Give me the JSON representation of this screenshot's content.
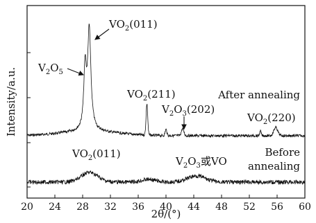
{
  "chart_data": {
    "type": "line",
    "title": "",
    "xlabel": "2θ/(°)",
    "ylabel": "Intensity/a.u.",
    "xlim": [
      20,
      60
    ],
    "x_ticks": [
      "20",
      "24",
      "28",
      "32",
      "36",
      "40",
      "44",
      "48",
      "52",
      "56",
      "60"
    ],
    "grid": false,
    "series": [
      {
        "name": "After annealing",
        "label_text": "After annealing",
        "baseline_x": [
          20,
          24,
          26,
          27.5,
          28.2,
          28.6,
          29.0,
          29.6,
          30.5,
          32,
          35,
          37,
          37.4,
          37.8,
          40,
          42.5,
          46,
          50,
          54,
          55.8,
          57,
          60
        ],
        "peaks": [
          {
            "label": "V2O5",
            "x": 28.3
          },
          {
            "label": "VO2(011)",
            "x": 28.9
          },
          {
            "label": "VO2(211)",
            "x": 37.2
          },
          {
            "label": "V2O3(202)",
            "x": 42.3
          },
          {
            "label": "VO2(220)",
            "x": 55.7
          }
        ]
      },
      {
        "name": "Before annealing",
        "label_text": [
          "Before",
          "annealing"
        ],
        "peaks": [
          {
            "label": "VO2(011)",
            "x": 28.9
          },
          {
            "label": "V2O3或VO",
            "x": 44.2
          }
        ]
      }
    ],
    "annotations": {
      "v2o5": {
        "main": "V",
        "sub1": "2",
        "mid": "O",
        "sub2": "5"
      },
      "vo2_011_top": {
        "main": "VO",
        "sub": "2",
        "rest": "(011)"
      },
      "vo2_211": {
        "main": "VO",
        "sub": "2",
        "rest": "(211)"
      },
      "v2o3_202": {
        "main1": "V",
        "sub1": "2",
        "main2": "O",
        "sub2": "3",
        "rest": "(202)"
      },
      "vo2_220": {
        "main": "VO",
        "sub": "2",
        "rest": "(220)"
      },
      "vo2_011_bottom": {
        "main": "VO",
        "sub": "2",
        "rest": "(011)"
      },
      "v2o3_or_vo": {
        "main1": "V",
        "sub1": "2",
        "main2": "O",
        "sub2": "3",
        "rest": "或VO"
      }
    }
  }
}
